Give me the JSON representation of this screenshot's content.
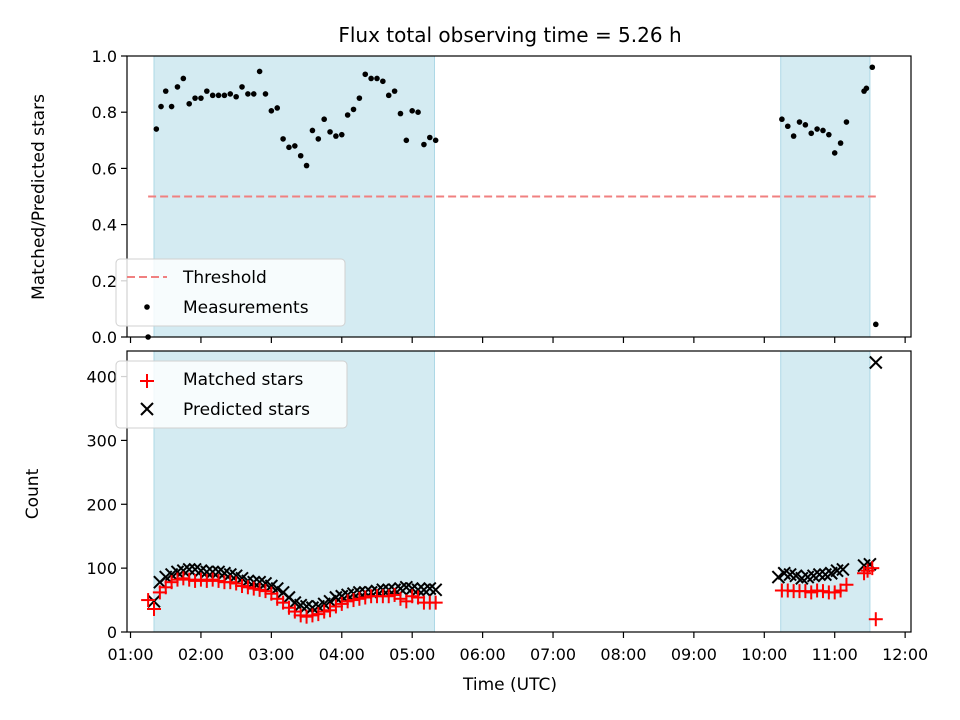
{
  "chart_data": [
    {
      "type": "scatter",
      "title": "Flux total observing time = 5.26 h",
      "xlabel": "",
      "ylabel": "Matched/Predicted stars",
      "ylim": [
        0,
        1.0
      ],
      "yticks": [
        "0.0",
        "0.2",
        "0.4",
        "0.6",
        "0.8",
        "1.0"
      ],
      "xlim": [
        "00:57",
        "12:05"
      ],
      "grid": false,
      "legend": {
        "position": "lower-left",
        "entries": [
          {
            "label": "Threshold",
            "style": "dashed-line",
            "color": "#f08080"
          },
          {
            "label": "Measurements",
            "style": "dot",
            "color": "#000000"
          }
        ]
      },
      "shaded_intervals": [
        {
          "start": "01:20",
          "end": "05:19",
          "color": "#add8e6"
        },
        {
          "start": "10:14",
          "end": "11:30",
          "color": "#add8e6"
        }
      ],
      "threshold": {
        "value": 0.5,
        "start": "01:15",
        "end": "11:35",
        "color": "#f08080"
      },
      "series": [
        {
          "name": "Measurements",
          "color": "#000000",
          "points": [
            [
              "01:15",
              0.0
            ],
            [
              "01:22",
              0.74
            ],
            [
              "01:26",
              0.82
            ],
            [
              "01:30",
              0.875
            ],
            [
              "01:35",
              0.82
            ],
            [
              "01:40",
              0.89
            ],
            [
              "01:45",
              0.92
            ],
            [
              "01:50",
              0.83
            ],
            [
              "01:55",
              0.85
            ],
            [
              "02:00",
              0.85
            ],
            [
              "02:05",
              0.875
            ],
            [
              "02:10",
              0.86
            ],
            [
              "02:15",
              0.86
            ],
            [
              "02:20",
              0.86
            ],
            [
              "02:25",
              0.865
            ],
            [
              "02:30",
              0.855
            ],
            [
              "02:35",
              0.89
            ],
            [
              "02:40",
              0.865
            ],
            [
              "02:45",
              0.865
            ],
            [
              "02:50",
              0.945
            ],
            [
              "02:55",
              0.865
            ],
            [
              "03:00",
              0.805
            ],
            [
              "03:05",
              0.815
            ],
            [
              "03:10",
              0.705
            ],
            [
              "03:15",
              0.675
            ],
            [
              "03:20",
              0.68
            ],
            [
              "03:25",
              0.645
            ],
            [
              "03:30",
              0.61
            ],
            [
              "03:35",
              0.735
            ],
            [
              "03:40",
              0.705
            ],
            [
              "03:45",
              0.775
            ],
            [
              "03:50",
              0.73
            ],
            [
              "03:55",
              0.715
            ],
            [
              "04:00",
              0.72
            ],
            [
              "04:05",
              0.79
            ],
            [
              "04:10",
              0.81
            ],
            [
              "04:15",
              0.85
            ],
            [
              "04:20",
              0.935
            ],
            [
              "04:25",
              0.92
            ],
            [
              "04:30",
              0.92
            ],
            [
              "04:35",
              0.91
            ],
            [
              "04:40",
              0.86
            ],
            [
              "04:45",
              0.875
            ],
            [
              "04:50",
              0.795
            ],
            [
              "04:55",
              0.7
            ],
            [
              "05:00",
              0.805
            ],
            [
              "05:05",
              0.8
            ],
            [
              "05:10",
              0.685
            ],
            [
              "05:15",
              0.71
            ],
            [
              "05:20",
              0.7
            ],
            [
              "10:15",
              0.775
            ],
            [
              "10:20",
              0.75
            ],
            [
              "10:25",
              0.715
            ],
            [
              "10:30",
              0.765
            ],
            [
              "10:35",
              0.755
            ],
            [
              "10:40",
              0.725
            ],
            [
              "10:45",
              0.74
            ],
            [
              "10:50",
              0.735
            ],
            [
              "10:55",
              0.72
            ],
            [
              "11:00",
              0.655
            ],
            [
              "11:05",
              0.69
            ],
            [
              "11:10",
              0.765
            ],
            [
              "11:25",
              0.875
            ],
            [
              "11:27",
              0.885
            ],
            [
              "11:32",
              0.96
            ],
            [
              "11:35",
              0.045
            ]
          ]
        }
      ]
    },
    {
      "type": "scatter",
      "title": "",
      "xlabel": "Time (UTC)",
      "ylabel": "Count",
      "ylim": [
        0,
        440
      ],
      "yticks": [
        "0",
        "100",
        "200",
        "300",
        "400"
      ],
      "xlim": [
        "00:57",
        "12:05"
      ],
      "xticks": [
        "01:00",
        "02:00",
        "03:00",
        "04:00",
        "05:00",
        "06:00",
        "07:00",
        "08:00",
        "09:00",
        "10:00",
        "11:00",
        "12:00"
      ],
      "grid": false,
      "legend": {
        "position": "upper-left",
        "entries": [
          {
            "label": "Matched stars",
            "style": "plus",
            "color": "#ff0000"
          },
          {
            "label": "Predicted stars",
            "style": "x",
            "color": "#000000"
          }
        ]
      },
      "shaded_intervals": [
        {
          "start": "01:20",
          "end": "05:19",
          "color": "#add8e6"
        },
        {
          "start": "10:14",
          "end": "11:30",
          "color": "#add8e6"
        }
      ],
      "series": [
        {
          "name": "Matched stars",
          "color": "#ff0000",
          "marker": "plus",
          "points": [
            [
              "01:15",
              50
            ],
            [
              "01:20",
              36
            ],
            [
              "01:25",
              62
            ],
            [
              "01:30",
              70
            ],
            [
              "01:35",
              78
            ],
            [
              "01:40",
              82
            ],
            [
              "01:45",
              84
            ],
            [
              "01:50",
              82
            ],
            [
              "01:55",
              80
            ],
            [
              "02:00",
              82
            ],
            [
              "02:05",
              80
            ],
            [
              "02:10",
              82
            ],
            [
              "02:15",
              80
            ],
            [
              "02:20",
              78
            ],
            [
              "02:25",
              78
            ],
            [
              "02:30",
              76
            ],
            [
              "02:35",
              72
            ],
            [
              "02:40",
              70
            ],
            [
              "02:45",
              68
            ],
            [
              "02:50",
              66
            ],
            [
              "02:55",
              64
            ],
            [
              "03:00",
              60
            ],
            [
              "03:05",
              52
            ],
            [
              "03:10",
              46
            ],
            [
              "03:15",
              38
            ],
            [
              "03:20",
              32
            ],
            [
              "03:25",
              26
            ],
            [
              "03:30",
              24
            ],
            [
              "03:35",
              26
            ],
            [
              "03:40",
              28
            ],
            [
              "03:45",
              32
            ],
            [
              "03:50",
              34
            ],
            [
              "03:55",
              40
            ],
            [
              "04:00",
              44
            ],
            [
              "04:05",
              48
            ],
            [
              "04:10",
              50
            ],
            [
              "04:15",
              52
            ],
            [
              "04:20",
              54
            ],
            [
              "04:25",
              56
            ],
            [
              "04:30",
              56
            ],
            [
              "04:35",
              56
            ],
            [
              "04:40",
              56
            ],
            [
              "04:45",
              58
            ],
            [
              "04:50",
              52
            ],
            [
              "04:55",
              48
            ],
            [
              "05:00",
              56
            ],
            [
              "05:05",
              54
            ],
            [
              "05:10",
              46
            ],
            [
              "05:15",
              46
            ],
            [
              "05:20",
              46
            ],
            [
              "10:15",
              65
            ],
            [
              "10:20",
              65
            ],
            [
              "10:25",
              64
            ],
            [
              "10:30",
              64
            ],
            [
              "10:35",
              64
            ],
            [
              "10:40",
              62
            ],
            [
              "10:45",
              65
            ],
            [
              "10:50",
              64
            ],
            [
              "10:55",
              62
            ],
            [
              "11:00",
              62
            ],
            [
              "11:05",
              65
            ],
            [
              "11:10",
              74
            ],
            [
              "11:25",
              92
            ],
            [
              "11:28",
              96
            ],
            [
              "11:32",
              100
            ],
            [
              "11:35",
              20
            ]
          ]
        },
        {
          "name": "Predicted stars",
          "color": "#000000",
          "marker": "x",
          "points": [
            [
              "01:20",
              48
            ],
            [
              "01:25",
              78
            ],
            [
              "01:30",
              86
            ],
            [
              "01:35",
              90
            ],
            [
              "01:40",
              94
            ],
            [
              "01:45",
              96
            ],
            [
              "01:50",
              98
            ],
            [
              "01:55",
              98
            ],
            [
              "02:00",
              96
            ],
            [
              "02:05",
              94
            ],
            [
              "02:10",
              94
            ],
            [
              "02:15",
              94
            ],
            [
              "02:20",
              92
            ],
            [
              "02:25",
              90
            ],
            [
              "02:30",
              88
            ],
            [
              "02:35",
              84
            ],
            [
              "02:40",
              80
            ],
            [
              "02:45",
              78
            ],
            [
              "02:50",
              78
            ],
            [
              "02:55",
              76
            ],
            [
              "03:00",
              72
            ],
            [
              "03:05",
              68
            ],
            [
              "03:10",
              62
            ],
            [
              "03:15",
              54
            ],
            [
              "03:20",
              46
            ],
            [
              "03:25",
              42
            ],
            [
              "03:30",
              40
            ],
            [
              "03:35",
              38
            ],
            [
              "03:40",
              40
            ],
            [
              "03:45",
              44
            ],
            [
              "03:50",
              48
            ],
            [
              "03:55",
              54
            ],
            [
              "04:00",
              56
            ],
            [
              "04:05",
              58
            ],
            [
              "04:10",
              60
            ],
            [
              "04:15",
              62
            ],
            [
              "04:20",
              62
            ],
            [
              "04:25",
              62
            ],
            [
              "04:30",
              64
            ],
            [
              "04:35",
              66
            ],
            [
              "04:40",
              66
            ],
            [
              "04:45",
              66
            ],
            [
              "04:50",
              68
            ],
            [
              "04:55",
              70
            ],
            [
              "05:00",
              68
            ],
            [
              "05:05",
              66
            ],
            [
              "05:10",
              66
            ],
            [
              "05:15",
              68
            ],
            [
              "05:20",
              66
            ],
            [
              "10:12",
              86
            ],
            [
              "10:17",
              92
            ],
            [
              "10:22",
              90
            ],
            [
              "10:27",
              88
            ],
            [
              "10:32",
              84
            ],
            [
              "10:37",
              86
            ],
            [
              "10:42",
              88
            ],
            [
              "10:47",
              90
            ],
            [
              "10:52",
              90
            ],
            [
              "10:57",
              92
            ],
            [
              "11:02",
              96
            ],
            [
              "11:07",
              98
            ],
            [
              "11:25",
              104
            ],
            [
              "11:30",
              106
            ],
            [
              "11:35",
              422
            ]
          ]
        }
      ]
    }
  ]
}
